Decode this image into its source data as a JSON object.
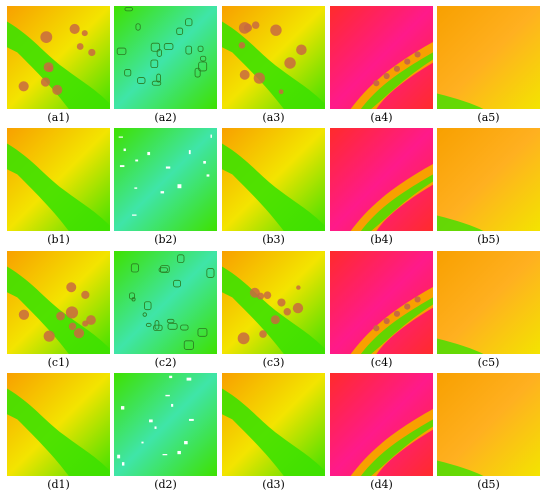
{
  "figure": {
    "labels": [
      [
        "(a1)",
        "(a2)",
        "(a3)",
        "(a4)",
        "(a5)"
      ],
      [
        "(b1)",
        "(b2)",
        "(b3)",
        "(b4)",
        "(b5)"
      ],
      [
        "(c1)",
        "(c2)",
        "(c3)",
        "(c4)",
        "(c5)"
      ],
      [
        "(d1)",
        "(d2)",
        "(d3)",
        "(d4)",
        "(d5)"
      ]
    ],
    "colors": {
      "yellow": "#f3e400",
      "orange": "#f8a000",
      "green": "#3ee100",
      "teal": "#3fe5a8",
      "red": "#ff2b2b",
      "magenta": "#ff1a8a",
      "light_orange": "#ffb020",
      "brown_blob": "#c86a40",
      "white": "#ffffff"
    }
  }
}
